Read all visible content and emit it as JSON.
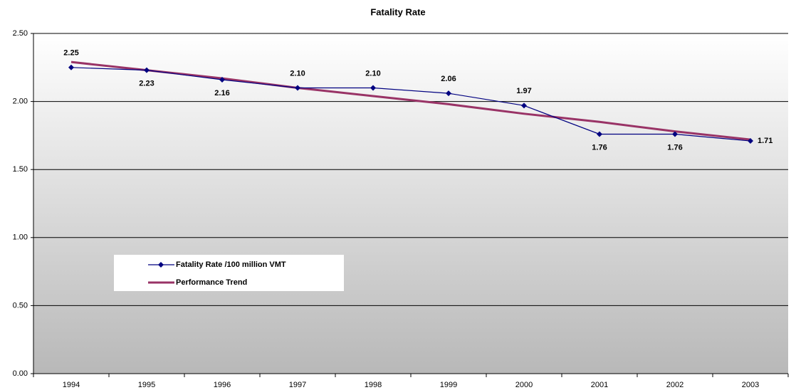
{
  "chart_data": {
    "type": "line",
    "title": "Fatality Rate",
    "categories": [
      "1994",
      "1995",
      "1996",
      "1997",
      "1998",
      "1999",
      "2000",
      "2001",
      "2002",
      "2003"
    ],
    "series": [
      {
        "name": "Fatality Rate /100 million VMT",
        "color": "#000080",
        "values": [
          2.25,
          2.23,
          2.16,
          2.1,
          2.1,
          2.06,
          1.97,
          1.76,
          1.76,
          1.71
        ],
        "value_labels": [
          "2.25",
          "2.23",
          "2.16",
          "2.10",
          "2.10",
          "2.06",
          "1.97",
          "1.76",
          "1.76",
          "1.71"
        ]
      },
      {
        "name": "Performance Trend",
        "color": "#993366",
        "values": [
          2.29,
          2.23,
          2.17,
          2.1,
          2.04,
          1.98,
          1.91,
          1.85,
          1.78,
          1.72
        ]
      }
    ],
    "ylim": [
      0,
      2.5
    ],
    "yticks": [
      {
        "value": 0,
        "label": "0.00"
      },
      {
        "value": 0.5,
        "label": "0.50"
      },
      {
        "value": 1,
        "label": "1.00"
      },
      {
        "value": 1.5,
        "label": "1.50"
      },
      {
        "value": 2,
        "label": "2.00"
      },
      {
        "value": 2.5,
        "label": "2.50"
      }
    ],
    "grid": true
  }
}
